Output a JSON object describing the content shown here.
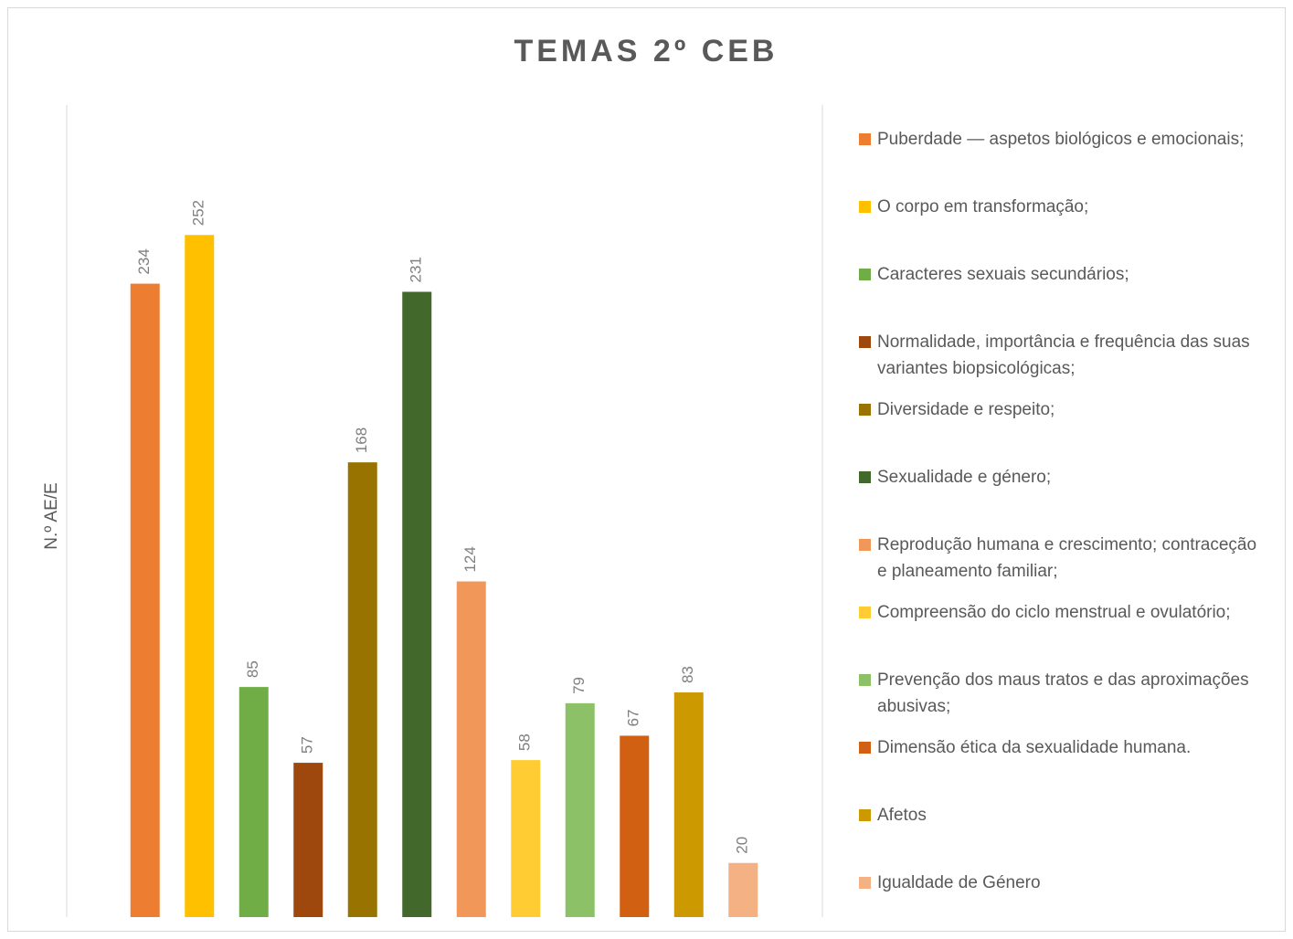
{
  "chart_data": {
    "type": "bar",
    "title": "TEMAS 2º CEB",
    "y_label": "N.º AE/E",
    "categories": [
      "Puberdade — aspetos biológicos e emocionais;",
      "O corpo em transformação;",
      "Caracteres sexuais secundários;",
      "Normalidade, importância e frequência das suas variantes biopsicológicas;",
      "Diversidade e respeito;",
      "Sexualidade e género;",
      "Reprodução humana e crescimento; contraceção e planeamento familiar;",
      "Compreensão do ciclo menstrual e ovulatório;",
      "Prevenção dos maus tratos e das aproximações abusivas;",
      "Dimensão ética da sexualidade humana.",
      "Afetos",
      "Igualdade de Género"
    ],
    "values": [
      234,
      252,
      85,
      57,
      168,
      231,
      124,
      58,
      79,
      67,
      83,
      20
    ],
    "colors": [
      "#ED7D31",
      "#FFC000",
      "#70AD47",
      "#9E480E",
      "#997300",
      "#43682B",
      "#F1975A",
      "#FFCD33",
      "#8CC168",
      "#D26012",
      "#CC9A00",
      "#F4B183"
    ],
    "ylim": [
      0,
      300
    ],
    "legend": "right"
  }
}
